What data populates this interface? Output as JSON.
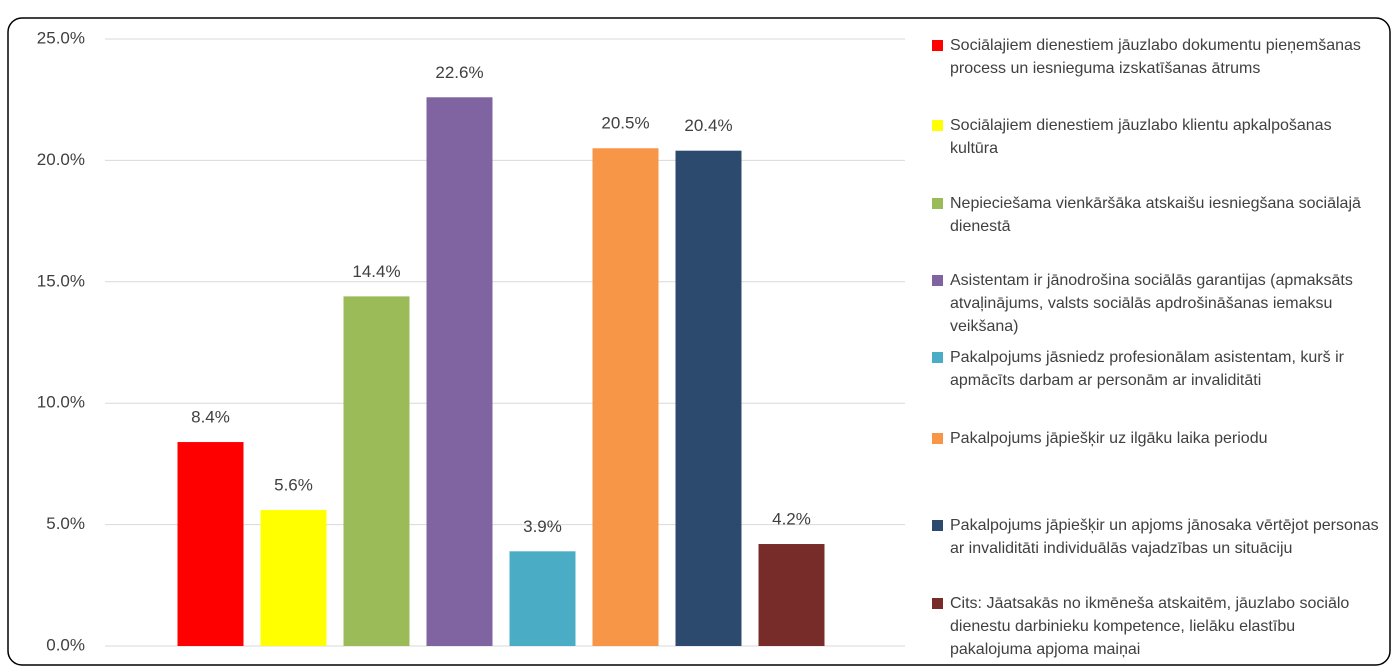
{
  "chart_data": {
    "type": "bar",
    "categories": [
      "Sociālajiem dienestiem jāuzlabo dokumentu pieņemšanas process un iesnieguma izskatīšanas ātrums",
      "Sociālajiem dienestiem jāuzlabo klientu apkalpošanas kultūra",
      "Nepieciešama vienkāršāka atskaišu iesniegšana sociālajā dienestā",
      "Asistentam ir jānodrošina sociālās garantijas (apmaksāts atvaļinājums, valsts sociālās apdrošināšanas iemaksu veikšana)",
      "Pakalpojums jāsniedz profesionālam asistentam, kurš ir apmācīts darbam ar personām ar invaliditāti",
      "Pakalpojums jāpiešķir uz ilgāku laika periodu",
      "Pakalpojums jāpiešķir un apjoms jānosaka vērtējot personas ar invaliditāti individuālās vajadzības un situāciju",
      "Cits: Jāatsakās no ikmēneša atskaitēm, jāuzlabo sociālo dienestu darbinieku kompetence, lielāku elastību pakalojuma apjoma maiņai"
    ],
    "values": [
      8.4,
      5.6,
      14.4,
      22.6,
      3.9,
      20.5,
      20.4,
      4.2
    ],
    "value_labels": [
      "8.4%",
      "5.6%",
      "14.4%",
      "22.6%",
      "3.9%",
      "20.5%",
      "20.4%",
      "4.2%"
    ],
    "colors": [
      "#ff0000",
      "#ffff00",
      "#9bbb59",
      "#8064a2",
      "#4bacc6",
      "#f79646",
      "#2c4a6e",
      "#772c2a"
    ],
    "ylim": [
      0,
      25
    ],
    "yticks": [
      {
        "value": 0,
        "label": "0.0%"
      },
      {
        "value": 5,
        "label": "5.0%"
      },
      {
        "value": 10,
        "label": "10.0%"
      },
      {
        "value": 15,
        "label": "15.0%"
      },
      {
        "value": 20,
        "label": "20.0%"
      },
      {
        "value": 25,
        "label": "25.0%"
      }
    ],
    "grid": true,
    "legend": "right"
  }
}
